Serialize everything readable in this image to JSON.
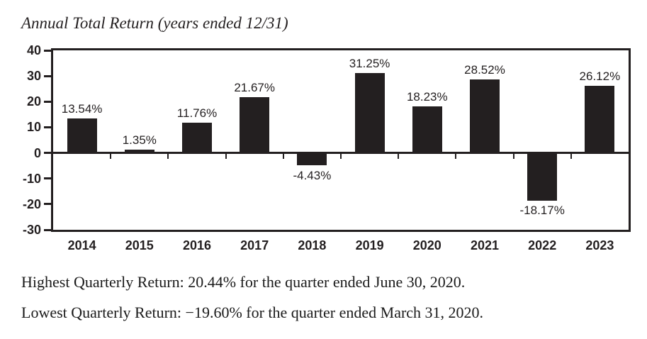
{
  "chart_data": {
    "type": "bar",
    "title": "Annual Total Return (years ended 12/31)",
    "categories": [
      "2014",
      "2015",
      "2016",
      "2017",
      "2018",
      "2019",
      "2020",
      "2021",
      "2022",
      "2023"
    ],
    "values": [
      13.54,
      1.35,
      11.76,
      21.67,
      -4.43,
      31.25,
      18.23,
      28.52,
      -18.17,
      26.12
    ],
    "value_labels": [
      "13.54%",
      "1.35%",
      "11.76%",
      "21.67%",
      "-4.43%",
      "31.25%",
      "18.23%",
      "28.52%",
      "-18.17%",
      "26.12%"
    ],
    "yticks": [
      40,
      30,
      20,
      10,
      0,
      -10,
      -20,
      -30
    ],
    "ylim": [
      -30,
      40
    ],
    "xlabel": "",
    "ylabel": "",
    "grid": false,
    "legend": false,
    "bar_color": "#231f20",
    "axis_color": "#231f20"
  },
  "footer": {
    "highest": "Highest Quarterly Return: 20.44% for the quarter ended June 30, 2020.",
    "lowest": "Lowest Quarterly Return: −19.60% for the quarter ended March 31, 2020."
  }
}
